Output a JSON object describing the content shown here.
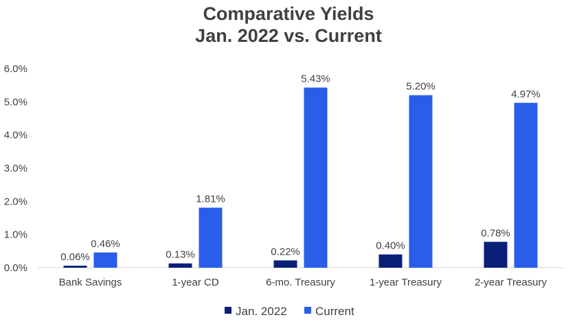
{
  "chart_data": {
    "type": "bar",
    "title_lines": [
      "Comparative Yields",
      "Jan. 2022 vs. Current"
    ],
    "categories": [
      "Bank Savings",
      "1-year CD",
      "6-mo. Treasury",
      "1-year Treasury",
      "2-year Treasury"
    ],
    "series": [
      {
        "name": "Jan. 2022",
        "color": "#0a1f78",
        "values": [
          0.06,
          0.13,
          0.22,
          0.4,
          0.78
        ],
        "labels": [
          "0.06%",
          "0.13%",
          "0.22%",
          "0.40%",
          "0.78%"
        ]
      },
      {
        "name": "Current",
        "color": "#2a5ee8",
        "values": [
          0.46,
          1.81,
          5.43,
          5.2,
          4.97
        ],
        "labels": [
          "0.46%",
          "1.81%",
          "5.43%",
          "5.20%",
          "4.97%"
        ]
      }
    ],
    "ylim": [
      0,
      6
    ],
    "yticks": [
      0,
      1,
      2,
      3,
      4,
      5,
      6
    ],
    "ytick_labels": [
      "0.0%",
      "1.0%",
      "2.0%",
      "3.0%",
      "4.0%",
      "5.0%",
      "6.0%"
    ],
    "xlabel": "",
    "ylabel": "",
    "grid": false,
    "legend_position": "bottom"
  }
}
